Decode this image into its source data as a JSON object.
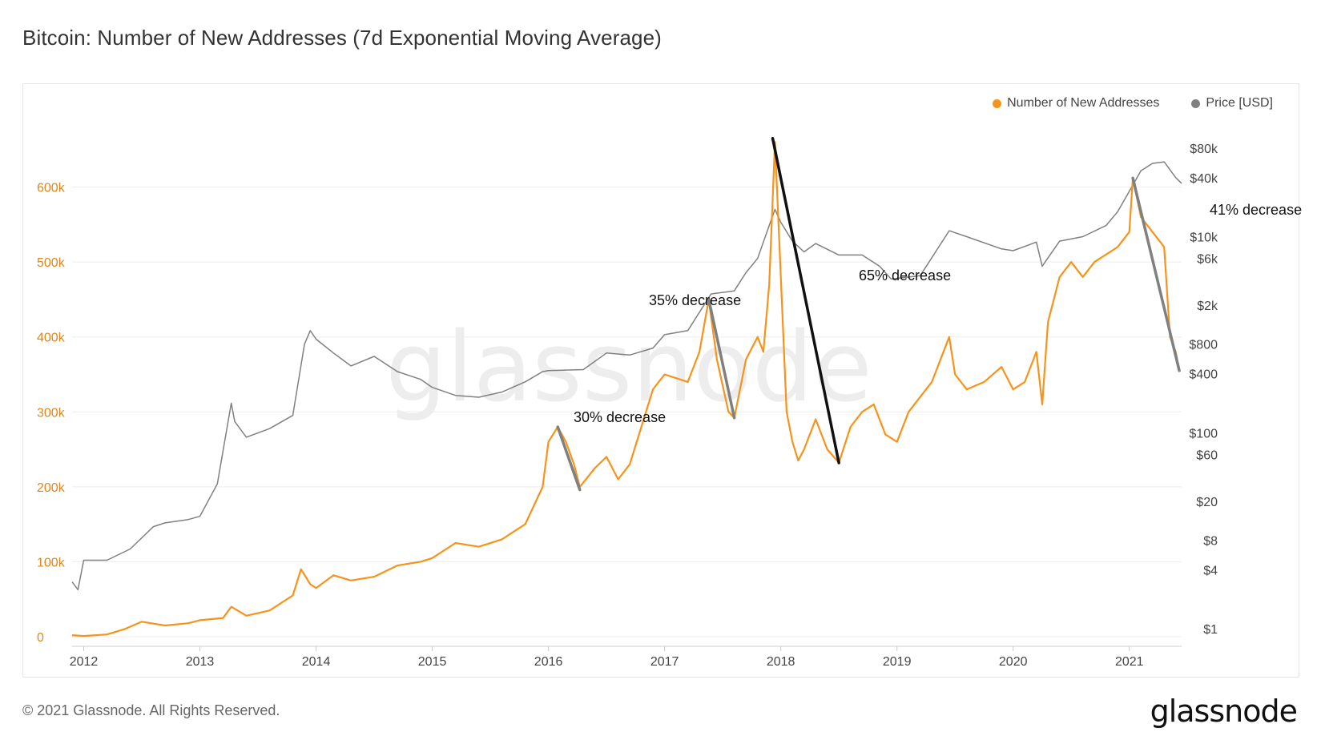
{
  "title": "Bitcoin: Number of New Addresses (7d Exponential Moving Average)",
  "footer": {
    "copyright": "© 2021 Glassnode. All Rights Reserved.",
    "logo": "glassnode"
  },
  "watermark": "glassnode",
  "colors": {
    "addresses": "#f7931a",
    "price": "#808080",
    "grid": "#eeeeee",
    "left_axis_text": "#e0861a"
  },
  "legend": [
    {
      "label": "Number of New Addresses",
      "color": "#f7931a"
    },
    {
      "label": "Price [USD]",
      "color": "#808080"
    }
  ],
  "annotations": [
    {
      "label": "30% decrease",
      "from_date": 2016.08,
      "from_value": 280000,
      "to_date": 2016.27,
      "to_value": 196000,
      "line_color": "#808080"
    },
    {
      "label": "35% decrease",
      "from_date": 2017.38,
      "from_value": 450000,
      "to_date": 2017.6,
      "to_value": 292000,
      "line_color": "#808080"
    },
    {
      "label": "65% decrease",
      "from_date": 2017.93,
      "from_value": 665000,
      "to_date": 2018.5,
      "to_value": 232000,
      "line_color": "#111111"
    },
    {
      "label": "41% decrease",
      "from_date": 2021.03,
      "from_value": 612000,
      "to_date": 2021.43,
      "to_value": 355000,
      "line_color": "#808080"
    }
  ],
  "chart_data": {
    "type": "line",
    "title": "Bitcoin: Number of New Addresses (7d Exponential Moving Average)",
    "x_axis": {
      "ticks": [
        "2012",
        "2013",
        "2014",
        "2015",
        "2016",
        "2017",
        "2018",
        "2019",
        "2020",
        "2021"
      ],
      "range": [
        2011.9,
        2021.45
      ]
    },
    "y_left": {
      "ticks": [
        "0",
        "100k",
        "200k",
        "300k",
        "400k",
        "500k",
        "600k"
      ],
      "range": [
        0,
        700000
      ]
    },
    "y_right": {
      "scale": "log",
      "ticks": [
        "$1",
        "$4",
        "$8",
        "$20",
        "$60",
        "$100",
        "$400",
        "$800",
        "$2k",
        "$6k",
        "$10k",
        "$40k",
        "$80k"
      ],
      "tick_values": [
        1,
        4,
        8,
        20,
        60,
        100,
        400,
        800,
        2000,
        6000,
        10000,
        40000,
        80000
      ],
      "range": [
        1,
        80000
      ]
    },
    "grid": true,
    "legend_position": "top-right",
    "series": [
      {
        "name": "Number of New Addresses",
        "axis": "left",
        "x": [
          2011.9,
          2012.0,
          2012.2,
          2012.35,
          2012.5,
          2012.7,
          2012.9,
          2013.0,
          2013.2,
          2013.27,
          2013.4,
          2013.6,
          2013.8,
          2013.87,
          2013.95,
          2014.0,
          2014.15,
          2014.3,
          2014.5,
          2014.7,
          2014.9,
          2015.0,
          2015.2,
          2015.4,
          2015.6,
          2015.8,
          2015.95,
          2016.0,
          2016.08,
          2016.15,
          2016.22,
          2016.27,
          2016.4,
          2016.5,
          2016.6,
          2016.7,
          2016.8,
          2016.9,
          2017.0,
          2017.1,
          2017.2,
          2017.3,
          2017.38,
          2017.45,
          2017.55,
          2017.6,
          2017.7,
          2017.8,
          2017.85,
          2017.9,
          2017.95,
          2018.0,
          2018.05,
          2018.1,
          2018.15,
          2018.2,
          2018.3,
          2018.4,
          2018.5,
          2018.6,
          2018.7,
          2018.8,
          2018.9,
          2019.0,
          2019.1,
          2019.2,
          2019.3,
          2019.45,
          2019.5,
          2019.6,
          2019.75,
          2019.9,
          2020.0,
          2020.1,
          2020.2,
          2020.25,
          2020.3,
          2020.4,
          2020.5,
          2020.6,
          2020.7,
          2020.8,
          2020.9,
          2021.0,
          2021.03,
          2021.1,
          2021.2,
          2021.3,
          2021.35,
          2021.4,
          2021.43
        ],
        "y": [
          2000,
          1000,
          3000,
          10000,
          20000,
          15000,
          18000,
          22000,
          25000,
          40000,
          28000,
          35000,
          55000,
          90000,
          70000,
          65000,
          82000,
          75000,
          80000,
          95000,
          100000,
          105000,
          125000,
          120000,
          130000,
          150000,
          200000,
          260000,
          280000,
          260000,
          230000,
          200000,
          225000,
          240000,
          210000,
          230000,
          280000,
          330000,
          350000,
          345000,
          340000,
          380000,
          450000,
          370000,
          300000,
          292000,
          370000,
          400000,
          380000,
          470000,
          660000,
          480000,
          300000,
          260000,
          235000,
          250000,
          290000,
          250000,
          232000,
          280000,
          300000,
          310000,
          270000,
          260000,
          300000,
          320000,
          340000,
          400000,
          350000,
          330000,
          340000,
          360000,
          330000,
          340000,
          380000,
          310000,
          420000,
          480000,
          500000,
          480000,
          500000,
          510000,
          520000,
          540000,
          612000,
          560000,
          540000,
          520000,
          400000,
          380000,
          355000
        ]
      },
      {
        "name": "Price [USD]",
        "axis": "right",
        "x": [
          2011.9,
          2011.95,
          2012.0,
          2012.2,
          2012.4,
          2012.6,
          2012.7,
          2012.9,
          2013.0,
          2013.15,
          2013.27,
          2013.3,
          2013.4,
          2013.6,
          2013.8,
          2013.9,
          2013.95,
          2014.0,
          2014.15,
          2014.3,
          2014.5,
          2014.7,
          2014.9,
          2015.0,
          2015.2,
          2015.4,
          2015.6,
          2015.8,
          2015.95,
          2016.0,
          2016.3,
          2016.5,
          2016.7,
          2016.9,
          2017.0,
          2017.2,
          2017.4,
          2017.6,
          2017.7,
          2017.8,
          2017.9,
          2017.95,
          2018.0,
          2018.1,
          2018.2,
          2018.3,
          2018.5,
          2018.7,
          2018.85,
          2018.95,
          2019.2,
          2019.45,
          2019.6,
          2019.9,
          2020.0,
          2020.2,
          2020.25,
          2020.4,
          2020.6,
          2020.8,
          2020.9,
          2021.0,
          2021.1,
          2021.2,
          2021.3,
          2021.4,
          2021.45
        ],
        "y": [
          3,
          2.5,
          5,
          5,
          6.5,
          11,
          12,
          13,
          14,
          30,
          200,
          130,
          90,
          110,
          150,
          800,
          1100,
          900,
          650,
          480,
          600,
          420,
          350,
          290,
          240,
          230,
          260,
          330,
          420,
          430,
          440,
          650,
          620,
          730,
          1000,
          1100,
          2600,
          2800,
          4300,
          6000,
          13000,
          19000,
          14000,
          9000,
          7000,
          8500,
          6500,
          6500,
          5000,
          3700,
          4000,
          11500,
          10000,
          7500,
          7200,
          8800,
          5000,
          9000,
          10000,
          13000,
          18000,
          29000,
          47000,
          56000,
          58000,
          40000,
          35000
        ]
      }
    ]
  }
}
